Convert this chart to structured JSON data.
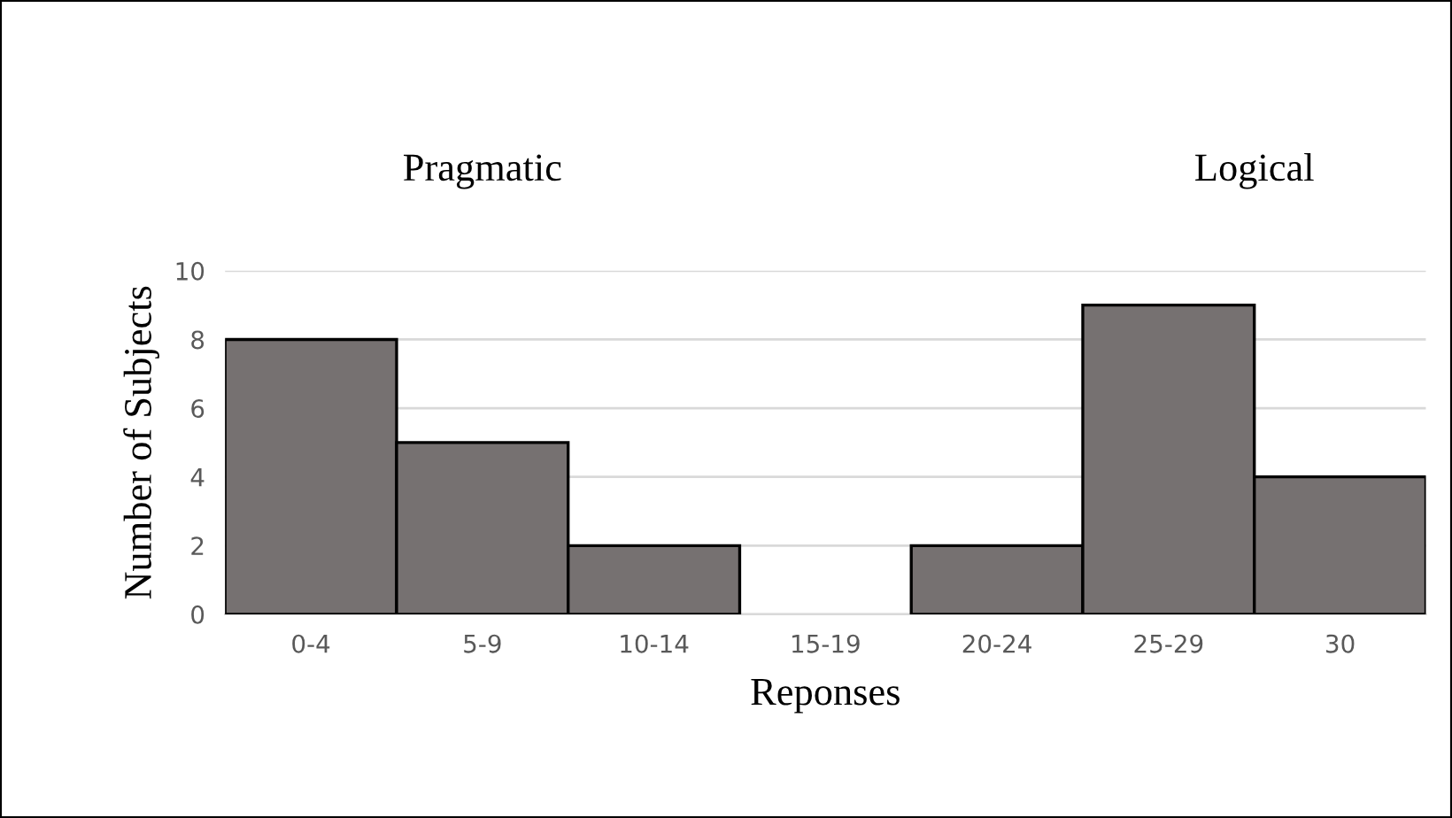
{
  "chart_data": {
    "type": "bar",
    "xlabel": "Reponses",
    "ylabel": "Number of Subjects",
    "categories": [
      "0-4",
      "5-9",
      "10-14",
      "15-19",
      "20-24",
      "25-29",
      "30"
    ],
    "values": [
      8,
      5,
      2,
      0,
      2,
      9,
      4
    ],
    "color": "#767171",
    "ylim": [
      0,
      10
    ],
    "yticks": [
      0,
      2,
      4,
      6,
      8,
      10
    ],
    "grid": "y",
    "annotations": [
      "Pragmatic",
      "Logical"
    ]
  }
}
